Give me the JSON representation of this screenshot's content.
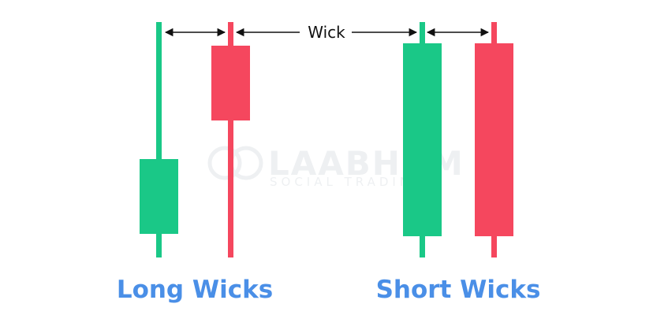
{
  "colors": {
    "bullish": "#1ac887",
    "bearish": "#f5475e",
    "title": "#4a8fe7",
    "arrow": "#111111",
    "watermark": "#eef0f2"
  },
  "annotation": {
    "label": "Wick"
  },
  "watermark": {
    "brand": "LAABHUM",
    "tagline": "SOCIAL TRADING",
    "icon": "laabhum-logo-icon"
  },
  "groups": [
    {
      "title": "Long Wicks",
      "candles": [
        {
          "direction": "bullish",
          "wick": "long"
        },
        {
          "direction": "bearish",
          "wick": "long"
        }
      ]
    },
    {
      "title": "Short Wicks",
      "candles": [
        {
          "direction": "bullish",
          "wick": "short"
        },
        {
          "direction": "bearish",
          "wick": "short"
        }
      ]
    }
  ]
}
